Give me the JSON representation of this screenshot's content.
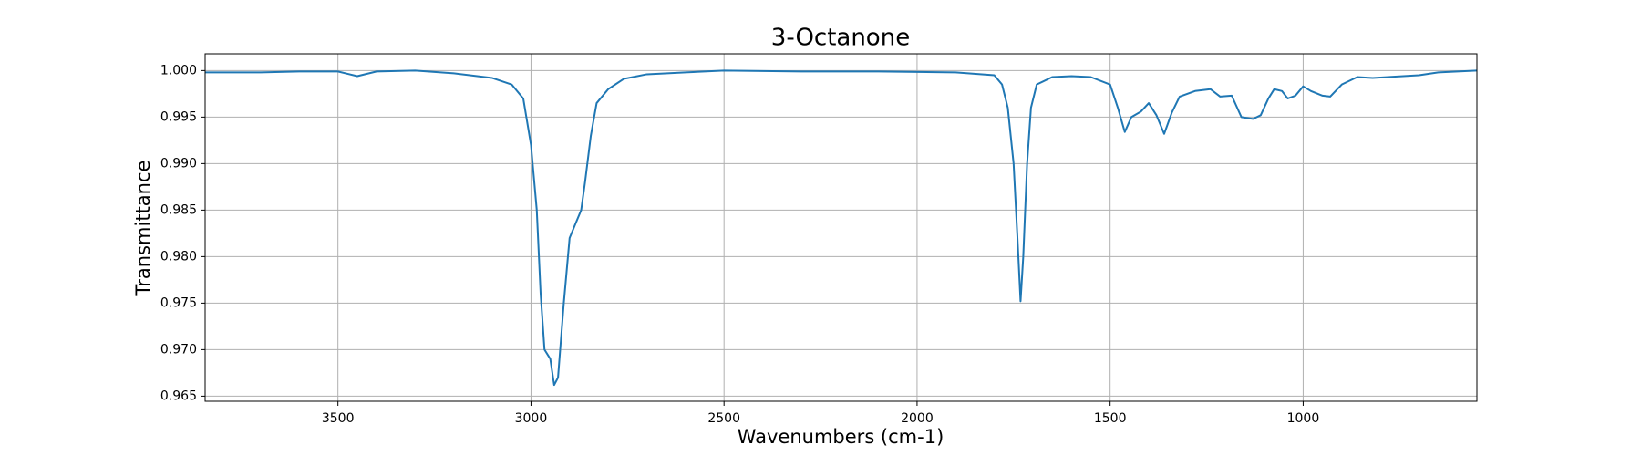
{
  "chart_data": {
    "type": "line",
    "title": "3-Octanone",
    "xlabel": "Wavenumbers (cm-1)",
    "ylabel": "Transmittance",
    "xlim": [
      3844,
      550
    ],
    "ylim": [
      0.96445,
      1.0018
    ],
    "xticks": [
      3500,
      3000,
      2500,
      2000,
      1500,
      1000
    ],
    "yticks": [
      {
        "value": 0.965,
        "label": "0.965"
      },
      {
        "value": 0.97,
        "label": "0.970"
      },
      {
        "value": 0.975,
        "label": "0.975"
      },
      {
        "value": 0.98,
        "label": "0.980"
      },
      {
        "value": 0.985,
        "label": "0.985"
      },
      {
        "value": 0.99,
        "label": "0.990"
      },
      {
        "value": 0.995,
        "label": "0.995"
      },
      {
        "value": 1.0,
        "label": "1.000"
      }
    ],
    "grid": true,
    "series": [
      {
        "name": "3-Octanone",
        "color": "#1f77b4",
        "x": [
          3844,
          3700,
          3600,
          3500,
          3450,
          3400,
          3300,
          3200,
          3100,
          3050,
          3020,
          3000,
          2985,
          2975,
          2965,
          2950,
          2940,
          2930,
          2915,
          2900,
          2885,
          2870,
          2860,
          2845,
          2830,
          2800,
          2760,
          2700,
          2600,
          2500,
          2300,
          2100,
          1900,
          1800,
          1780,
          1765,
          1750,
          1740,
          1732,
          1725,
          1715,
          1705,
          1690,
          1650,
          1600,
          1550,
          1500,
          1480,
          1462,
          1445,
          1420,
          1400,
          1380,
          1360,
          1340,
          1320,
          1280,
          1240,
          1215,
          1185,
          1160,
          1130,
          1110,
          1090,
          1075,
          1055,
          1040,
          1020,
          1000,
          980,
          950,
          930,
          900,
          860,
          820,
          780,
          700,
          650,
          600,
          550
        ],
        "values": [
          0.9998,
          0.9998,
          0.9999,
          0.9999,
          0.9994,
          0.9999,
          1.0,
          0.9997,
          0.9992,
          0.9985,
          0.997,
          0.992,
          0.985,
          0.976,
          0.97,
          0.969,
          0.9662,
          0.967,
          0.975,
          0.982,
          0.9835,
          0.985,
          0.988,
          0.993,
          0.9965,
          0.998,
          0.9991,
          0.9996,
          0.9998,
          1.0,
          0.9999,
          0.9999,
          0.9998,
          0.9995,
          0.9985,
          0.996,
          0.99,
          0.982,
          0.9752,
          0.98,
          0.99,
          0.996,
          0.9985,
          0.9993,
          0.9994,
          0.9993,
          0.9985,
          0.996,
          0.9934,
          0.995,
          0.9956,
          0.9965,
          0.9952,
          0.9932,
          0.9955,
          0.9972,
          0.9978,
          0.998,
          0.9972,
          0.9973,
          0.995,
          0.9948,
          0.9952,
          0.997,
          0.998,
          0.9978,
          0.997,
          0.9973,
          0.9983,
          0.9978,
          0.9973,
          0.9972,
          0.9985,
          0.9993,
          0.9992,
          0.9993,
          0.9995,
          0.9998,
          0.9999,
          1.0
        ]
      }
    ]
  }
}
